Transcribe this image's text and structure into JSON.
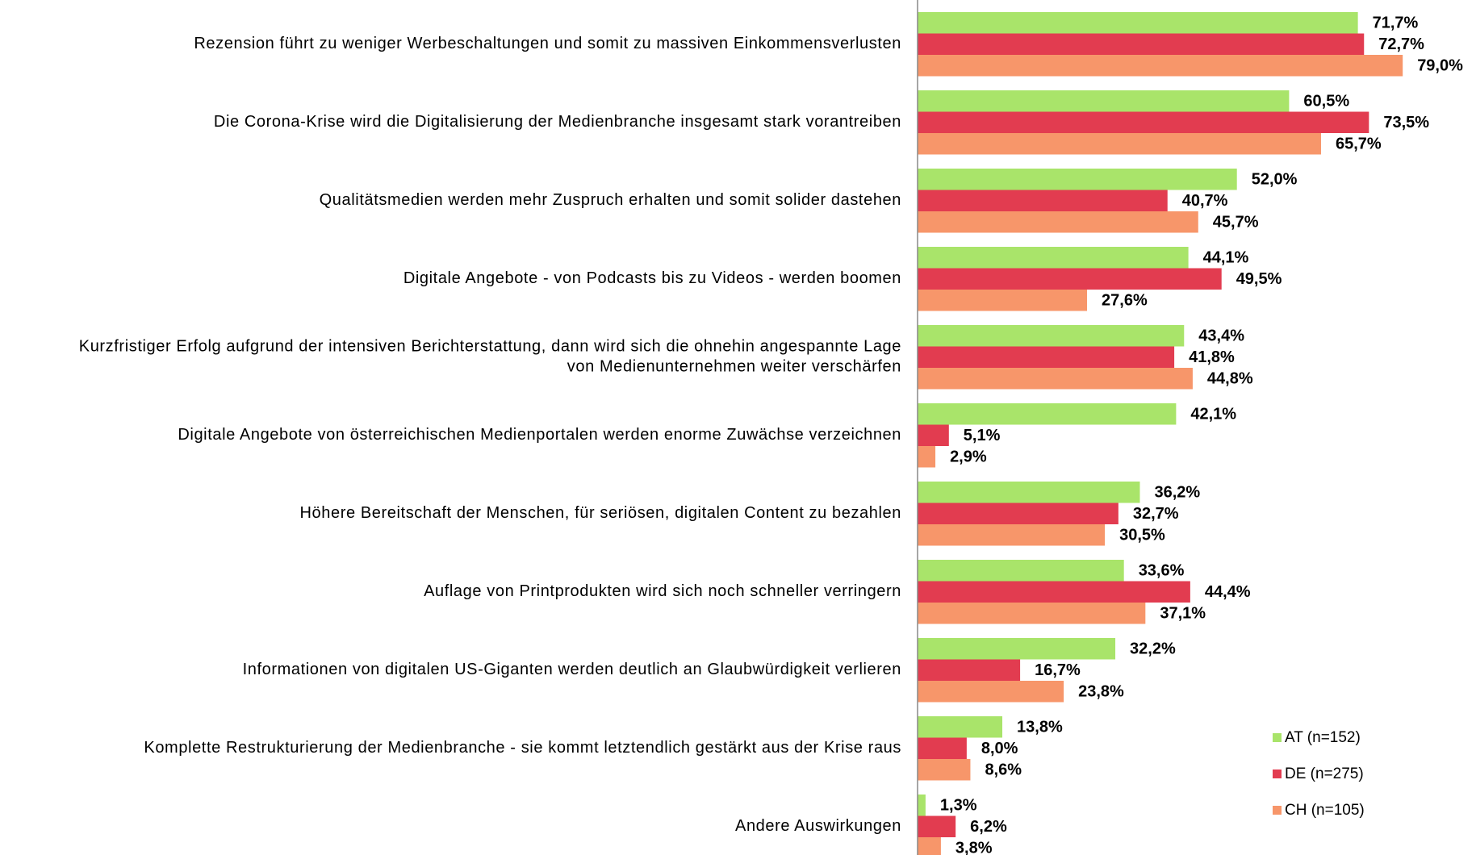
{
  "chart_data": {
    "type": "barh",
    "categories": [
      [
        "Rezension führt zu weniger Werbeschaltungen und somit zu massiven Einkommensverlusten"
      ],
      [
        "Die Corona-Krise wird die Digitalisierung der Medienbranche insgesamt stark vorantreiben"
      ],
      [
        "Qualitätsmedien werden mehr Zuspruch erhalten und somit solider dastehen"
      ],
      [
        "Digitale Angebote - von Podcasts bis zu Videos - werden boomen"
      ],
      [
        "Kurzfristiger Erfolg aufgrund der intensiven Berichterstattung, dann wird sich die ohnehin angespannte Lage",
        "von Medienunternehmen weiter verschärfen"
      ],
      [
        "Digitale Angebote von österreichischen Medienportalen werden enorme Zuwächse verzeichnen"
      ],
      [
        "Höhere Bereitschaft der Menschen, für seriösen, digitalen Content zu bezahlen"
      ],
      [
        "Auflage von Printprodukten wird sich noch schneller verringern"
      ],
      [
        "Informationen von digitalen US-Giganten werden deutlich an Glaubwürdigkeit verlieren"
      ],
      [
        "Komplette Restrukturierung der Medienbranche - sie kommt letztendlich gestärkt aus der Krise raus"
      ],
      [
        "Andere Auswirkungen"
      ]
    ],
    "series": [
      {
        "name": "AT (n=152)",
        "color": "#a9e46a",
        "values": [
          71.7,
          60.5,
          52.0,
          44.1,
          43.4,
          42.1,
          36.2,
          33.6,
          32.2,
          13.8,
          1.3
        ],
        "value_labels": [
          "71,7%",
          "60,5%",
          "52,0%",
          "44,1%",
          "43,4%",
          "42,1%",
          "36,2%",
          "33,6%",
          "32,2%",
          "13,8%",
          "1,3%"
        ]
      },
      {
        "name": "DE (n=275)",
        "color": "#e23c50",
        "values": [
          72.7,
          73.5,
          40.7,
          49.5,
          41.8,
          5.1,
          32.7,
          44.4,
          16.7,
          8.0,
          6.2
        ],
        "value_labels": [
          "72,7%",
          "73,5%",
          "40,7%",
          "49,5%",
          "41,8%",
          "5,1%",
          "32,7%",
          "44,4%",
          "16,7%",
          "8,0%",
          "6,2%"
        ]
      },
      {
        "name": "CH (n=105)",
        "color": "#f7966a",
        "values": [
          79.0,
          65.7,
          45.7,
          27.6,
          44.8,
          2.9,
          30.5,
          37.1,
          23.8,
          8.6,
          3.8
        ],
        "value_labels": [
          "79,0%",
          "65,7%",
          "45,7%",
          "27,6%",
          "44,8%",
          "2,9%",
          "30,5%",
          "37,1%",
          "23,8%",
          "8,6%",
          "3,8%"
        ]
      }
    ],
    "legend": "lower right"
  }
}
